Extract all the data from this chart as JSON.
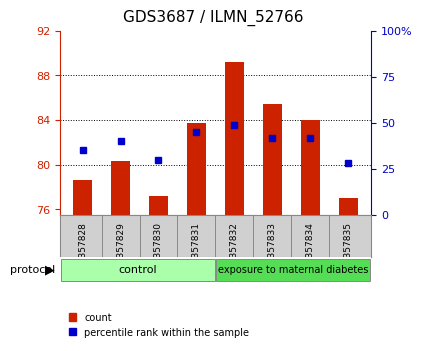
{
  "title": "GDS3687 / ILMN_52766",
  "samples": [
    "GSM357828",
    "GSM357829",
    "GSM357830",
    "GSM357831",
    "GSM357832",
    "GSM357833",
    "GSM357834",
    "GSM357835"
  ],
  "count_values": [
    78.6,
    80.3,
    77.2,
    83.7,
    89.2,
    85.4,
    84.0,
    77.0
  ],
  "percentile_values": [
    35,
    40,
    30,
    45,
    49,
    42,
    42,
    28
  ],
  "ylim_left": [
    75.5,
    92
  ],
  "ylim_right": [
    0,
    100
  ],
  "yticks_left": [
    76,
    80,
    84,
    88,
    92
  ],
  "yticks_right": [
    0,
    25,
    50,
    75,
    100
  ],
  "yticklabels_right": [
    "0",
    "25",
    "50",
    "75",
    "100%"
  ],
  "bar_color": "#cc2200",
  "marker_color": "#0000cc",
  "grid_color": "#000000",
  "bg_color": "#ffffff",
  "plot_bg": "#ffffff",
  "xlabel_color": "#cc2200",
  "ylabel_right_color": "#0000cc",
  "bar_width": 0.5,
  "groups": [
    {
      "label": "control",
      "start": 0,
      "end": 3,
      "color": "#ccffcc"
    },
    {
      "label": "exposure to maternal diabetes",
      "start": 4,
      "end": 7,
      "color": "#66ff66"
    }
  ],
  "protocol_label": "protocol",
  "legend_items": [
    {
      "label": "count",
      "color": "#cc2200",
      "marker": "s"
    },
    {
      "label": "percentile rank within the sample",
      "color": "#0000cc",
      "marker": "s"
    }
  ],
  "base_value": 75.5
}
